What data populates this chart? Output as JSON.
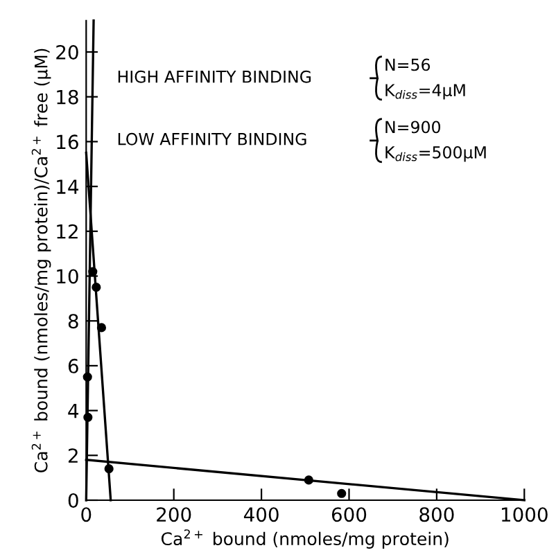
{
  "chart_data": {
    "type": "scatter",
    "xlabel": "Ca$^{2+}$ bound (nmoles/mg protein)",
    "ylabel": "Ca$^{2+}$ bound (nmoles/mg protein)/Ca$^{2+}$ free (μM)",
    "xlim": [
      0,
      1000
    ],
    "ylim": [
      0,
      21.4
    ],
    "xticks": [
      0,
      200,
      400,
      600,
      800,
      1000
    ],
    "yticks": [
      0,
      2,
      4,
      6,
      8,
      10,
      12,
      14,
      16,
      18,
      20
    ],
    "marker": "circle",
    "grid": false,
    "legend": false,
    "series": [
      {
        "color": "#000000",
        "x": [
          3,
          4,
          15,
          23,
          35,
          52,
          508,
          583
        ],
        "values": [
          5.5,
          3.7,
          10.2,
          9.5,
          7.7,
          1.4,
          0.9,
          0.3
        ]
      },
      {
        "type": "line",
        "color": "#000000",
        "marker": "none",
        "x": [
          0,
          56
        ],
        "values": [
          15.5,
          0
        ]
      },
      {
        "type": "line",
        "color": "#000000",
        "marker": "none",
        "x": [
          0,
          1000
        ],
        "values": [
          1.8,
          0
        ]
      },
      {
        "type": "line",
        "color": "#000000",
        "marker": "none",
        "x": [
          0,
          17
        ],
        "values": [
          0,
          21.4
        ]
      }
    ],
    "annotations": [
      "HIGH AFFINITY BINDING",
      "N=56",
      "K$_{diss}$=4μM",
      "LOW AFFINITY BINDING",
      "N=900",
      "K$_{diss}$=500μM"
    ]
  }
}
